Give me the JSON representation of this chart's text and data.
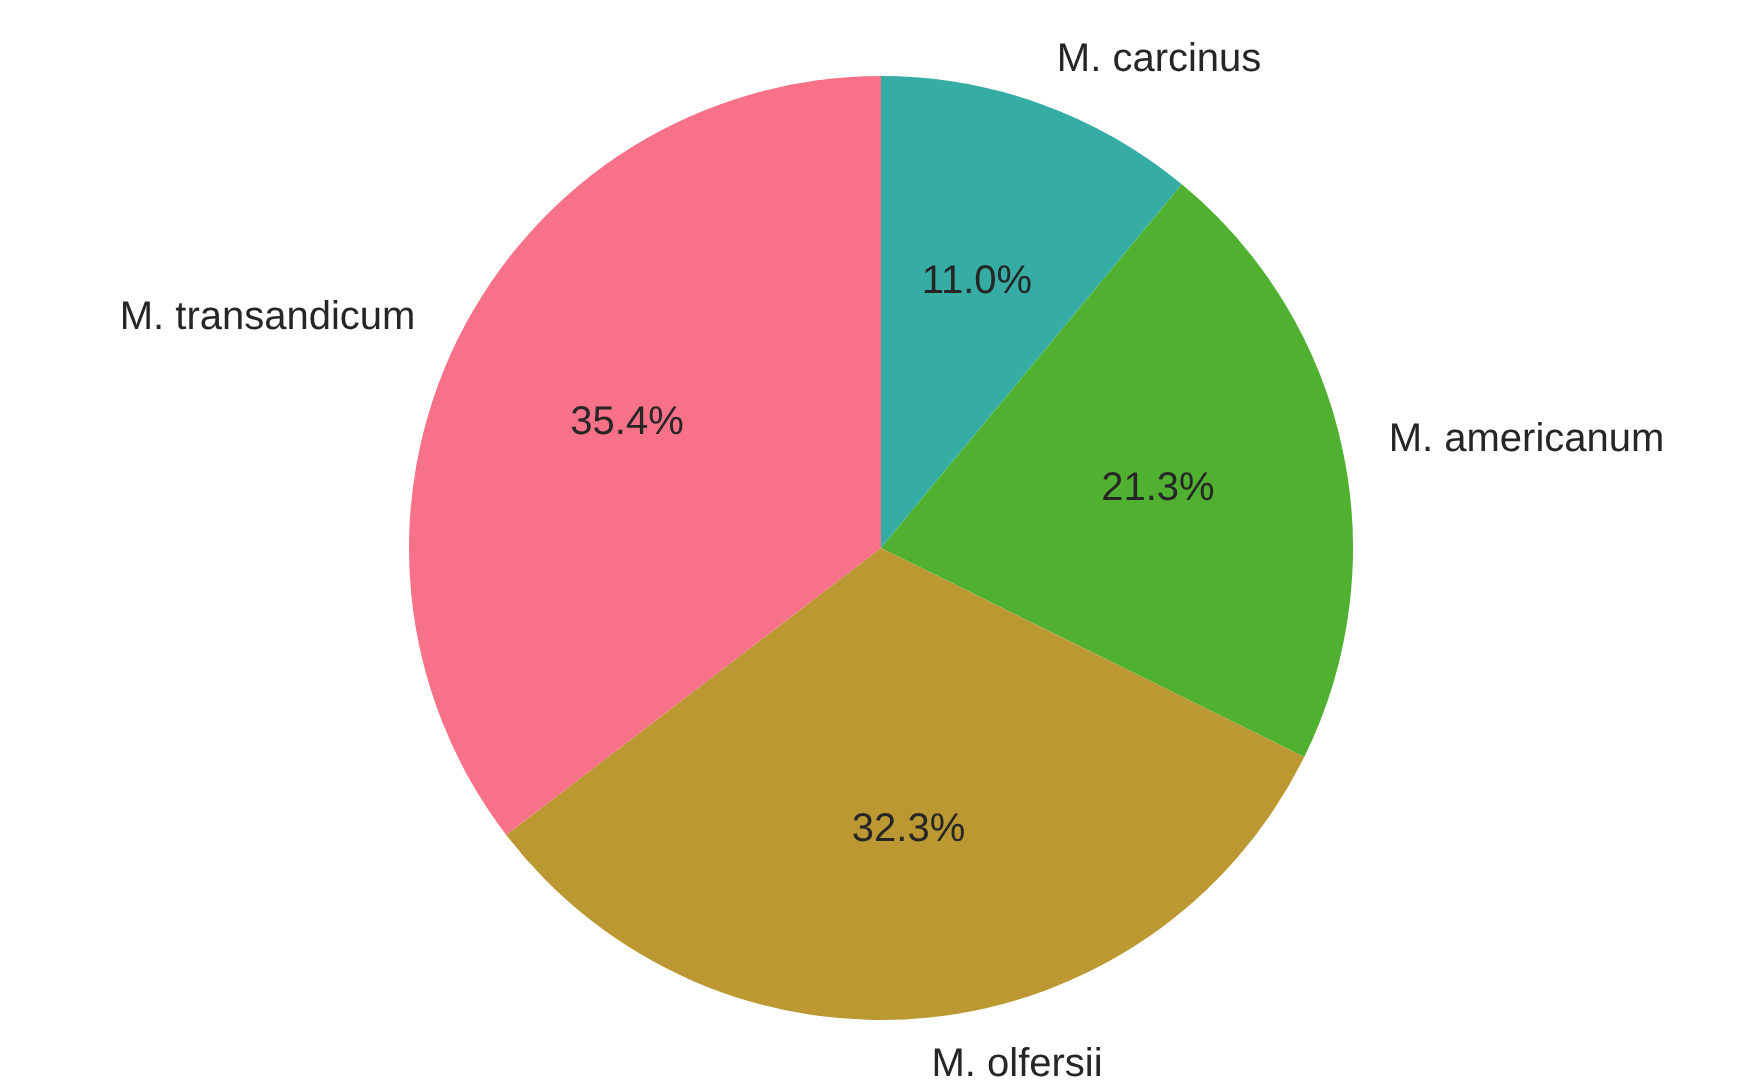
{
  "chart_data": {
    "type": "pie",
    "categories": [
      "M. carcinus",
      "M. americanum",
      "M. olfersii",
      "M. transandicum"
    ],
    "values": [
      11.0,
      21.3,
      32.3,
      35.4
    ],
    "colors": [
      "#36ada4",
      "#50b131",
      "#bb9832",
      "#f77189"
    ],
    "value_labels": [
      "11.0%",
      "21.3%",
      "32.3%",
      "35.4%"
    ],
    "legend": false
  }
}
